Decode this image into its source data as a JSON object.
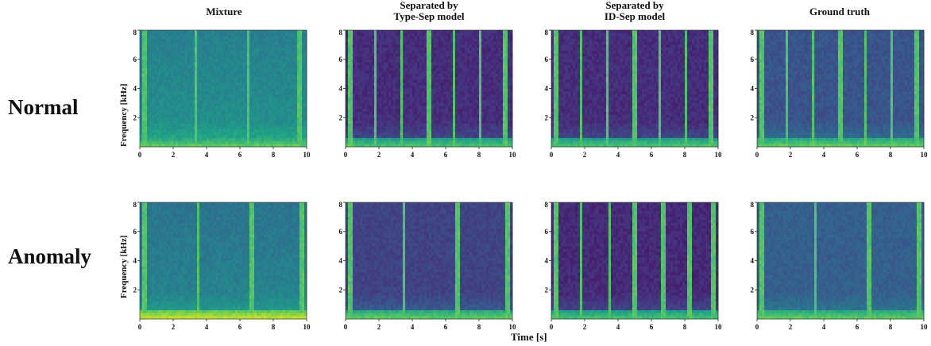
{
  "figure": {
    "column_titles": [
      "Mixture",
      "Separated by\nType-Sep model",
      "Separated by\nID-Sep model",
      "Ground truth"
    ],
    "row_labels": [
      "Normal",
      "Anomaly"
    ],
    "xlabel": "Time [s]",
    "ylabel": "Frequency [kHz]"
  },
  "colors": {
    "colormap": [
      "#440154",
      "#46327e",
      "#365c8d",
      "#277f8e",
      "#1fa187",
      "#4ac16d",
      "#a0da39",
      "#fde725"
    ]
  },
  "chart_data": [
    {
      "type": "heatmap",
      "row": "Normal",
      "column": "Mixture",
      "xlim": [
        0,
        10
      ],
      "ylim": [
        0,
        8
      ],
      "x_ticks": [
        "0",
        "2",
        "4",
        "6",
        "8",
        "10"
      ],
      "y_ticks": [
        "2",
        "4",
        "6",
        "8"
      ],
      "background_level": 0.47,
      "vertical_lines_s": [
        0.3,
        3.4,
        6.5,
        9.6
      ],
      "low_freq_band_level": 0.6
    },
    {
      "type": "heatmap",
      "row": "Normal",
      "column": "Separated by Type-Sep model",
      "xlim": [
        0,
        10
      ],
      "ylim": [
        0,
        8
      ],
      "x_ticks": [
        "0",
        "2",
        "4",
        "6",
        "8",
        "10"
      ],
      "y_ticks": [
        "2",
        "4",
        "6",
        "8"
      ],
      "background_level": 0.13,
      "vertical_lines_s": [
        0.3,
        1.8,
        3.4,
        5.0,
        6.5,
        8.1,
        9.6
      ],
      "low_freq_band_level": 0.55
    },
    {
      "type": "heatmap",
      "row": "Normal",
      "column": "Separated by ID-Sep model",
      "xlim": [
        0,
        10
      ],
      "ylim": [
        0,
        8
      ],
      "x_ticks": [
        "0",
        "2",
        "4",
        "6",
        "8",
        "10"
      ],
      "y_ticks": [
        "2",
        "4",
        "6",
        "8"
      ],
      "background_level": 0.13,
      "vertical_lines_s": [
        0.3,
        1.8,
        3.4,
        5.0,
        6.5,
        8.1,
        9.6
      ],
      "low_freq_band_level": 0.55
    },
    {
      "type": "heatmap",
      "row": "Normal",
      "column": "Ground truth",
      "xlim": [
        0,
        10
      ],
      "ylim": [
        0,
        8
      ],
      "x_ticks": [
        "0",
        "2",
        "4",
        "6",
        "8",
        "10"
      ],
      "y_ticks": [
        "2",
        "4",
        "6",
        "8"
      ],
      "background_level": 0.26,
      "vertical_lines_s": [
        0.3,
        1.8,
        3.4,
        5.0,
        6.5,
        8.1,
        9.6
      ],
      "low_freq_band_level": 0.6
    },
    {
      "type": "heatmap",
      "row": "Anomaly",
      "column": "Mixture",
      "xlim": [
        0,
        10
      ],
      "ylim": [
        0,
        8
      ],
      "x_ticks": [
        "0",
        "2",
        "4",
        "6",
        "8",
        "10"
      ],
      "y_ticks": [
        "2",
        "4",
        "6",
        "8"
      ],
      "background_level": 0.42,
      "vertical_lines_s": [
        0.3,
        3.5,
        6.7,
        9.7
      ],
      "low_freq_band_level": 0.75
    },
    {
      "type": "heatmap",
      "row": "Anomaly",
      "column": "Separated by Type-Sep model",
      "xlim": [
        0,
        10
      ],
      "ylim": [
        0,
        8
      ],
      "x_ticks": [
        "0",
        "2",
        "4",
        "6",
        "8",
        "10"
      ],
      "y_ticks": [
        "2",
        "4",
        "6",
        "8"
      ],
      "background_level": 0.2,
      "vertical_lines_s": [
        0.3,
        3.5,
        6.7,
        9.7
      ],
      "low_freq_band_level": 0.6
    },
    {
      "type": "heatmap",
      "row": "Anomaly",
      "column": "Separated by ID-Sep model",
      "xlim": [
        0,
        10
      ],
      "ylim": [
        0,
        8
      ],
      "x_ticks": [
        "0",
        "2",
        "4",
        "6",
        "8",
        "10"
      ],
      "y_ticks": [
        "2",
        "4",
        "6",
        "8"
      ],
      "background_level": 0.12,
      "vertical_lines_s": [
        0.3,
        1.8,
        3.5,
        5.0,
        6.7,
        8.3,
        9.7
      ],
      "low_freq_band_level": 0.55
    },
    {
      "type": "heatmap",
      "row": "Anomaly",
      "column": "Ground truth",
      "xlim": [
        0,
        10
      ],
      "ylim": [
        0,
        8
      ],
      "x_ticks": [
        "0",
        "2",
        "4",
        "6",
        "8",
        "10"
      ],
      "y_ticks": [
        "2",
        "4",
        "6",
        "8"
      ],
      "background_level": 0.3,
      "vertical_lines_s": [
        0.3,
        3.5,
        6.7,
        9.7
      ],
      "low_freq_band_level": 0.6
    }
  ]
}
